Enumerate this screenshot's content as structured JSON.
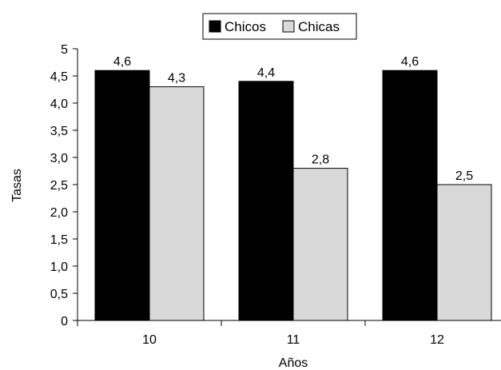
{
  "chart_data": {
    "type": "bar",
    "title": "",
    "xlabel": "Años",
    "ylabel": "Tasas",
    "categories": [
      "10",
      "11",
      "12"
    ],
    "series": [
      {
        "name": "Chicos",
        "values": [
          4.6,
          4.4,
          4.6
        ],
        "value_labels": [
          "4,6",
          "4,4",
          "4,6"
        ],
        "color": "#000000"
      },
      {
        "name": "Chicas",
        "values": [
          4.3,
          2.8,
          2.5
        ],
        "value_labels": [
          "4,3",
          "2,8",
          "2,5"
        ],
        "color": "#d9d9d9"
      }
    ],
    "ylim": [
      0,
      5
    ],
    "yticks": [
      0,
      0.5,
      1.0,
      1.5,
      2.0,
      2.5,
      3.0,
      3.5,
      4.0,
      4.5,
      5
    ],
    "ytick_labels": [
      "0",
      "0,5",
      "1,0",
      "1,5",
      "2,0",
      "2,5",
      "3,0",
      "3,5",
      "4,0",
      "4,5",
      "5"
    ],
    "grid": false,
    "legend_position": "top-center"
  }
}
